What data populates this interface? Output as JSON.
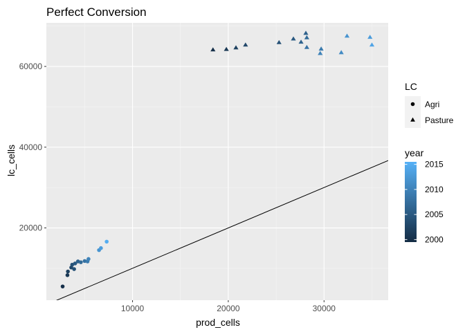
{
  "chart_data": {
    "type": "scatter",
    "title": "Perfect Conversion",
    "xlabel": "prod_cells",
    "ylabel": "lc_cells",
    "xlim": [
      1000,
      36700
    ],
    "ylim": [
      2100,
      70800
    ],
    "x_ticks": [
      {
        "value": 10000,
        "label": "10000"
      },
      {
        "value": 20000,
        "label": "20000"
      },
      {
        "value": 30000,
        "label": "30000"
      }
    ],
    "y_ticks": [
      {
        "value": 20000,
        "label": "20000"
      },
      {
        "value": 40000,
        "label": "40000"
      },
      {
        "value": 60000,
        "label": "60000"
      }
    ],
    "grid": true,
    "reference_line": {
      "slope": 1,
      "intercept": 0
    },
    "legend_shape": {
      "title": "LC",
      "entries": [
        {
          "label": "Agri",
          "shape": "circle"
        },
        {
          "label": "Pasture",
          "shape": "triangle"
        }
      ]
    },
    "legend_color": {
      "title": "year",
      "min": 1999.5,
      "max": 2015.5,
      "ticks": [
        {
          "value": 2000,
          "label": "2000"
        },
        {
          "value": 2005,
          "label": "2005"
        },
        {
          "value": 2010,
          "label": "2010"
        },
        {
          "value": 2015,
          "label": "2015"
        }
      ],
      "low_color": "#132B43",
      "high_color": "#56B1F7"
    },
    "series": [
      {
        "name": "Agri",
        "shape": "circle",
        "points": [
          {
            "x": 2700,
            "y": 5500,
            "year": 2000
          },
          {
            "x": 3200,
            "y": 8300,
            "year": 2001
          },
          {
            "x": 3250,
            "y": 9200,
            "year": 2002
          },
          {
            "x": 3600,
            "y": 10200,
            "year": 2003
          },
          {
            "x": 3700,
            "y": 10900,
            "year": 2004
          },
          {
            "x": 3900,
            "y": 9800,
            "year": 2004
          },
          {
            "x": 4000,
            "y": 11200,
            "year": 2005
          },
          {
            "x": 4300,
            "y": 11700,
            "year": 2006
          },
          {
            "x": 4600,
            "y": 11500,
            "year": 2007
          },
          {
            "x": 5000,
            "y": 11800,
            "year": 2008
          },
          {
            "x": 5300,
            "y": 11700,
            "year": 2009
          },
          {
            "x": 5400,
            "y": 12300,
            "year": 2010
          },
          {
            "x": 6500,
            "y": 14500,
            "year": 2012
          },
          {
            "x": 6700,
            "y": 15000,
            "year": 2013
          },
          {
            "x": 7300,
            "y": 16600,
            "year": 2015
          }
        ]
      },
      {
        "name": "Pasture",
        "shape": "triangle",
        "points": [
          {
            "x": 18400,
            "y": 64100,
            "year": 2000
          },
          {
            "x": 19800,
            "y": 64200,
            "year": 2001
          },
          {
            "x": 20800,
            "y": 64600,
            "year": 2002
          },
          {
            "x": 21800,
            "y": 65300,
            "year": 2003
          },
          {
            "x": 25300,
            "y": 65900,
            "year": 2004
          },
          {
            "x": 26800,
            "y": 66800,
            "year": 2005
          },
          {
            "x": 27600,
            "y": 66000,
            "year": 2006
          },
          {
            "x": 28100,
            "y": 68200,
            "year": 2006
          },
          {
            "x": 28200,
            "y": 67100,
            "year": 2007
          },
          {
            "x": 28200,
            "y": 64700,
            "year": 2008
          },
          {
            "x": 29700,
            "y": 64300,
            "year": 2009
          },
          {
            "x": 29600,
            "y": 63200,
            "year": 2010
          },
          {
            "x": 31800,
            "y": 63400,
            "year": 2011
          },
          {
            "x": 32400,
            "y": 67500,
            "year": 2012
          },
          {
            "x": 34800,
            "y": 67200,
            "year": 2013
          },
          {
            "x": 35000,
            "y": 65300,
            "year": 2014
          }
        ]
      }
    ]
  }
}
